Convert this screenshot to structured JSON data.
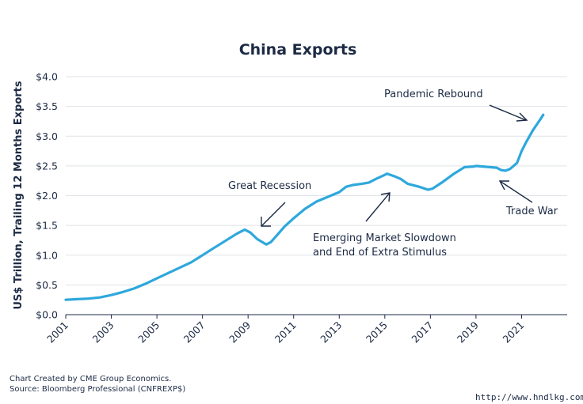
{
  "chart_data": {
    "type": "line",
    "title": "China Exports",
    "ylabel": "US$ Trillion, Trailing 12 Months Exports",
    "xlabel": "",
    "ylim": [
      0,
      4
    ],
    "xlim": [
      2001,
      2023
    ],
    "grid": true,
    "y_ticks": [
      "$0.0",
      "$0.5",
      "$1.0",
      "$1.5",
      "$2.0",
      "$2.5",
      "$3.0",
      "$3.5",
      "$4.0"
    ],
    "y_tick_values": [
      0,
      0.5,
      1.0,
      1.5,
      2.0,
      2.5,
      3.0,
      3.5,
      4.0
    ],
    "x_ticks": [
      "2001",
      "2003",
      "2005",
      "2007",
      "2009",
      "2011",
      "2013",
      "2015",
      "2017",
      "2019",
      "2021"
    ],
    "x_tick_values": [
      2001,
      2003,
      2005,
      2007,
      2009,
      2011,
      2013,
      2015,
      2017,
      2019,
      2021
    ],
    "series": [
      {
        "color": "#2ea8dc",
        "x": [
          2001.0,
          2001.5,
          2002.0,
          2002.5,
          2003.0,
          2003.5,
          2004.0,
          2004.5,
          2005.0,
          2005.5,
          2006.0,
          2006.5,
          2007.0,
          2007.5,
          2008.0,
          2008.5,
          2008.85,
          2009.1,
          2009.4,
          2009.8,
          2010.0,
          2010.3,
          2010.6,
          2011.0,
          2011.5,
          2012.0,
          2012.5,
          2013.0,
          2013.3,
          2013.6,
          2014.0,
          2014.3,
          2014.6,
          2015.0,
          2015.1,
          2015.4,
          2015.7,
          2016.0,
          2016.5,
          2016.9,
          2017.1,
          2017.5,
          2018.0,
          2018.5,
          2018.9,
          2019.0,
          2019.3,
          2019.6,
          2019.9,
          2020.0,
          2020.1,
          2020.3,
          2020.5,
          2020.8,
          2021.0,
          2021.2,
          2021.5,
          2021.8,
          2021.95
        ],
        "values": [
          0.25,
          0.26,
          0.27,
          0.29,
          0.33,
          0.38,
          0.44,
          0.52,
          0.61,
          0.7,
          0.79,
          0.88,
          1.0,
          1.12,
          1.24,
          1.36,
          1.43,
          1.38,
          1.27,
          1.18,
          1.22,
          1.35,
          1.48,
          1.62,
          1.78,
          1.9,
          1.98,
          2.06,
          2.15,
          2.18,
          2.2,
          2.22,
          2.28,
          2.35,
          2.37,
          2.33,
          2.28,
          2.2,
          2.15,
          2.1,
          2.12,
          2.22,
          2.36,
          2.48,
          2.49,
          2.5,
          2.49,
          2.48,
          2.47,
          2.45,
          2.43,
          2.42,
          2.45,
          2.55,
          2.75,
          2.9,
          3.1,
          3.27,
          3.36
        ]
      }
    ],
    "annotations": [
      {
        "text": "Pandemic Rebound",
        "target_x": 2021.9,
        "target_y": 3.3
      },
      {
        "text": "Great Recession",
        "target_x": 2009.4,
        "target_y": 1.42
      },
      {
        "text": "Emerging Market Slowdown",
        "text2": "and End of Extra Stimulus",
        "target_x": 2015.3,
        "target_y": 2.12
      },
      {
        "text": "Trade War",
        "target_x": 2019.8,
        "target_y": 2.3
      }
    ]
  },
  "footer": {
    "line1": "Chart Created by CME Group Economics.",
    "line2": "Source:  Bloomberg Professional (CNFREXP$)"
  },
  "watermark": "http://www.hndlkg.com"
}
